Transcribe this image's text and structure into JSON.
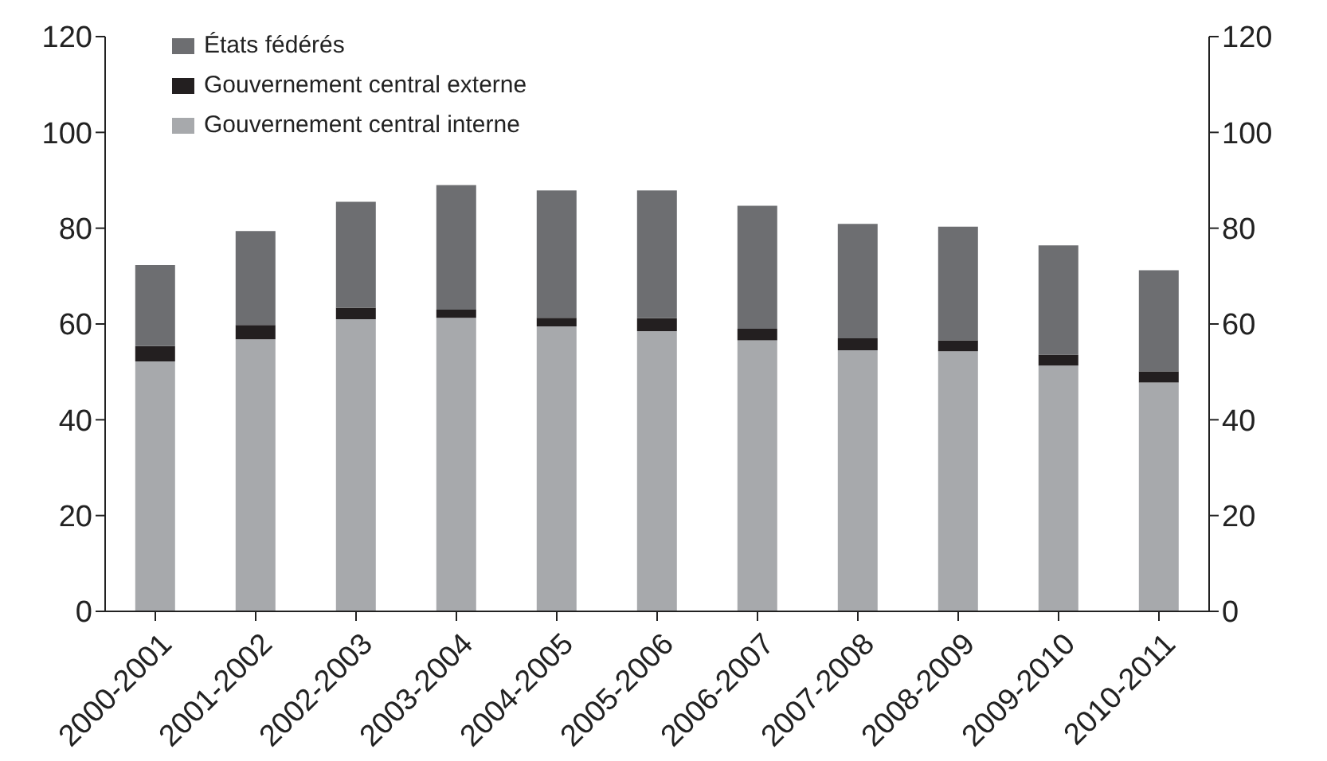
{
  "chart_data": {
    "type": "bar",
    "stacked": true,
    "categories": [
      "2000-2001",
      "2001-2002",
      "2002-2003",
      "2003-2004",
      "2004-2005",
      "2005-2006",
      "2006-2007",
      "2007-2008",
      "2008-2009",
      "2009-2010",
      "2010-2011"
    ],
    "series": [
      {
        "name": "Gouvernement central interne",
        "color": "#a7a9ac",
        "values": [
          52.2,
          56.8,
          61.0,
          61.3,
          59.5,
          58.5,
          56.6,
          54.5,
          54.3,
          51.3,
          47.8
        ]
      },
      {
        "name": "Gouvernement central externe",
        "color": "#231f20",
        "values": [
          3.2,
          3.0,
          2.4,
          1.7,
          1.8,
          2.7,
          2.4,
          2.5,
          2.3,
          2.3,
          2.3
        ]
      },
      {
        "name": "États fédérés",
        "color": "#6d6e71",
        "values": [
          16.9,
          19.6,
          22.1,
          26.0,
          26.6,
          26.7,
          25.7,
          23.9,
          23.7,
          22.8,
          21.1
        ]
      }
    ],
    "ylim": [
      0,
      120
    ],
    "yticks": [
      0,
      20,
      40,
      60,
      80,
      100,
      120
    ],
    "y2lim": [
      0,
      120
    ],
    "y2ticks": [
      0,
      20,
      40,
      60,
      80,
      100,
      120
    ],
    "grid": false,
    "legend": "top left"
  }
}
